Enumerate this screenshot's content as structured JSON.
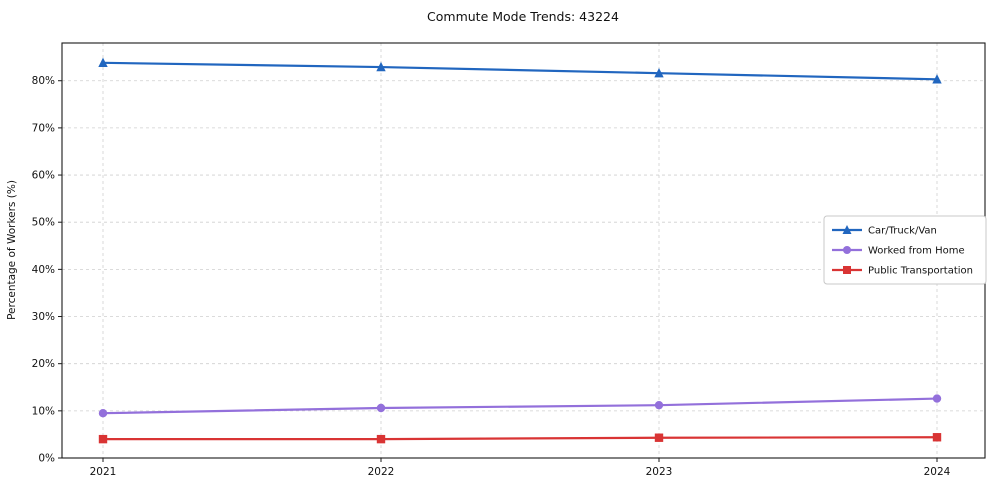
{
  "chart_data": {
    "type": "line",
    "title": "Commute Mode Trends: 43224",
    "xlabel": "",
    "ylabel": "Percentage of Workers (%)",
    "x": [
      2021,
      2022,
      2023,
      2024
    ],
    "xticklabels": [
      "2021",
      "2022",
      "2023",
      "2024"
    ],
    "yticks": [
      0,
      10,
      20,
      30,
      40,
      50,
      60,
      70,
      80
    ],
    "ytick_suffix": "%",
    "ylim": [
      0,
      88
    ],
    "grid": true,
    "grid_style": "dashed",
    "legend_position": "right-middle",
    "series": [
      {
        "name": "Car/Truck/Van",
        "values": [
          83.8,
          82.9,
          81.6,
          80.3
        ],
        "color": "#2166bf",
        "marker": "triangle"
      },
      {
        "name": "Worked from Home",
        "values": [
          9.5,
          10.6,
          11.2,
          12.6
        ],
        "color": "#9370db",
        "marker": "circle"
      },
      {
        "name": "Public Transportation",
        "values": [
          4.0,
          4.0,
          4.3,
          4.4
        ],
        "color": "#d93434",
        "marker": "square"
      }
    ],
    "colors": {
      "grid": "#cfcfcf",
      "spine": "#1a1a1a",
      "text": "#111111",
      "legend_border": "#c8c8c8",
      "legend_bg": "#ffffff"
    }
  }
}
